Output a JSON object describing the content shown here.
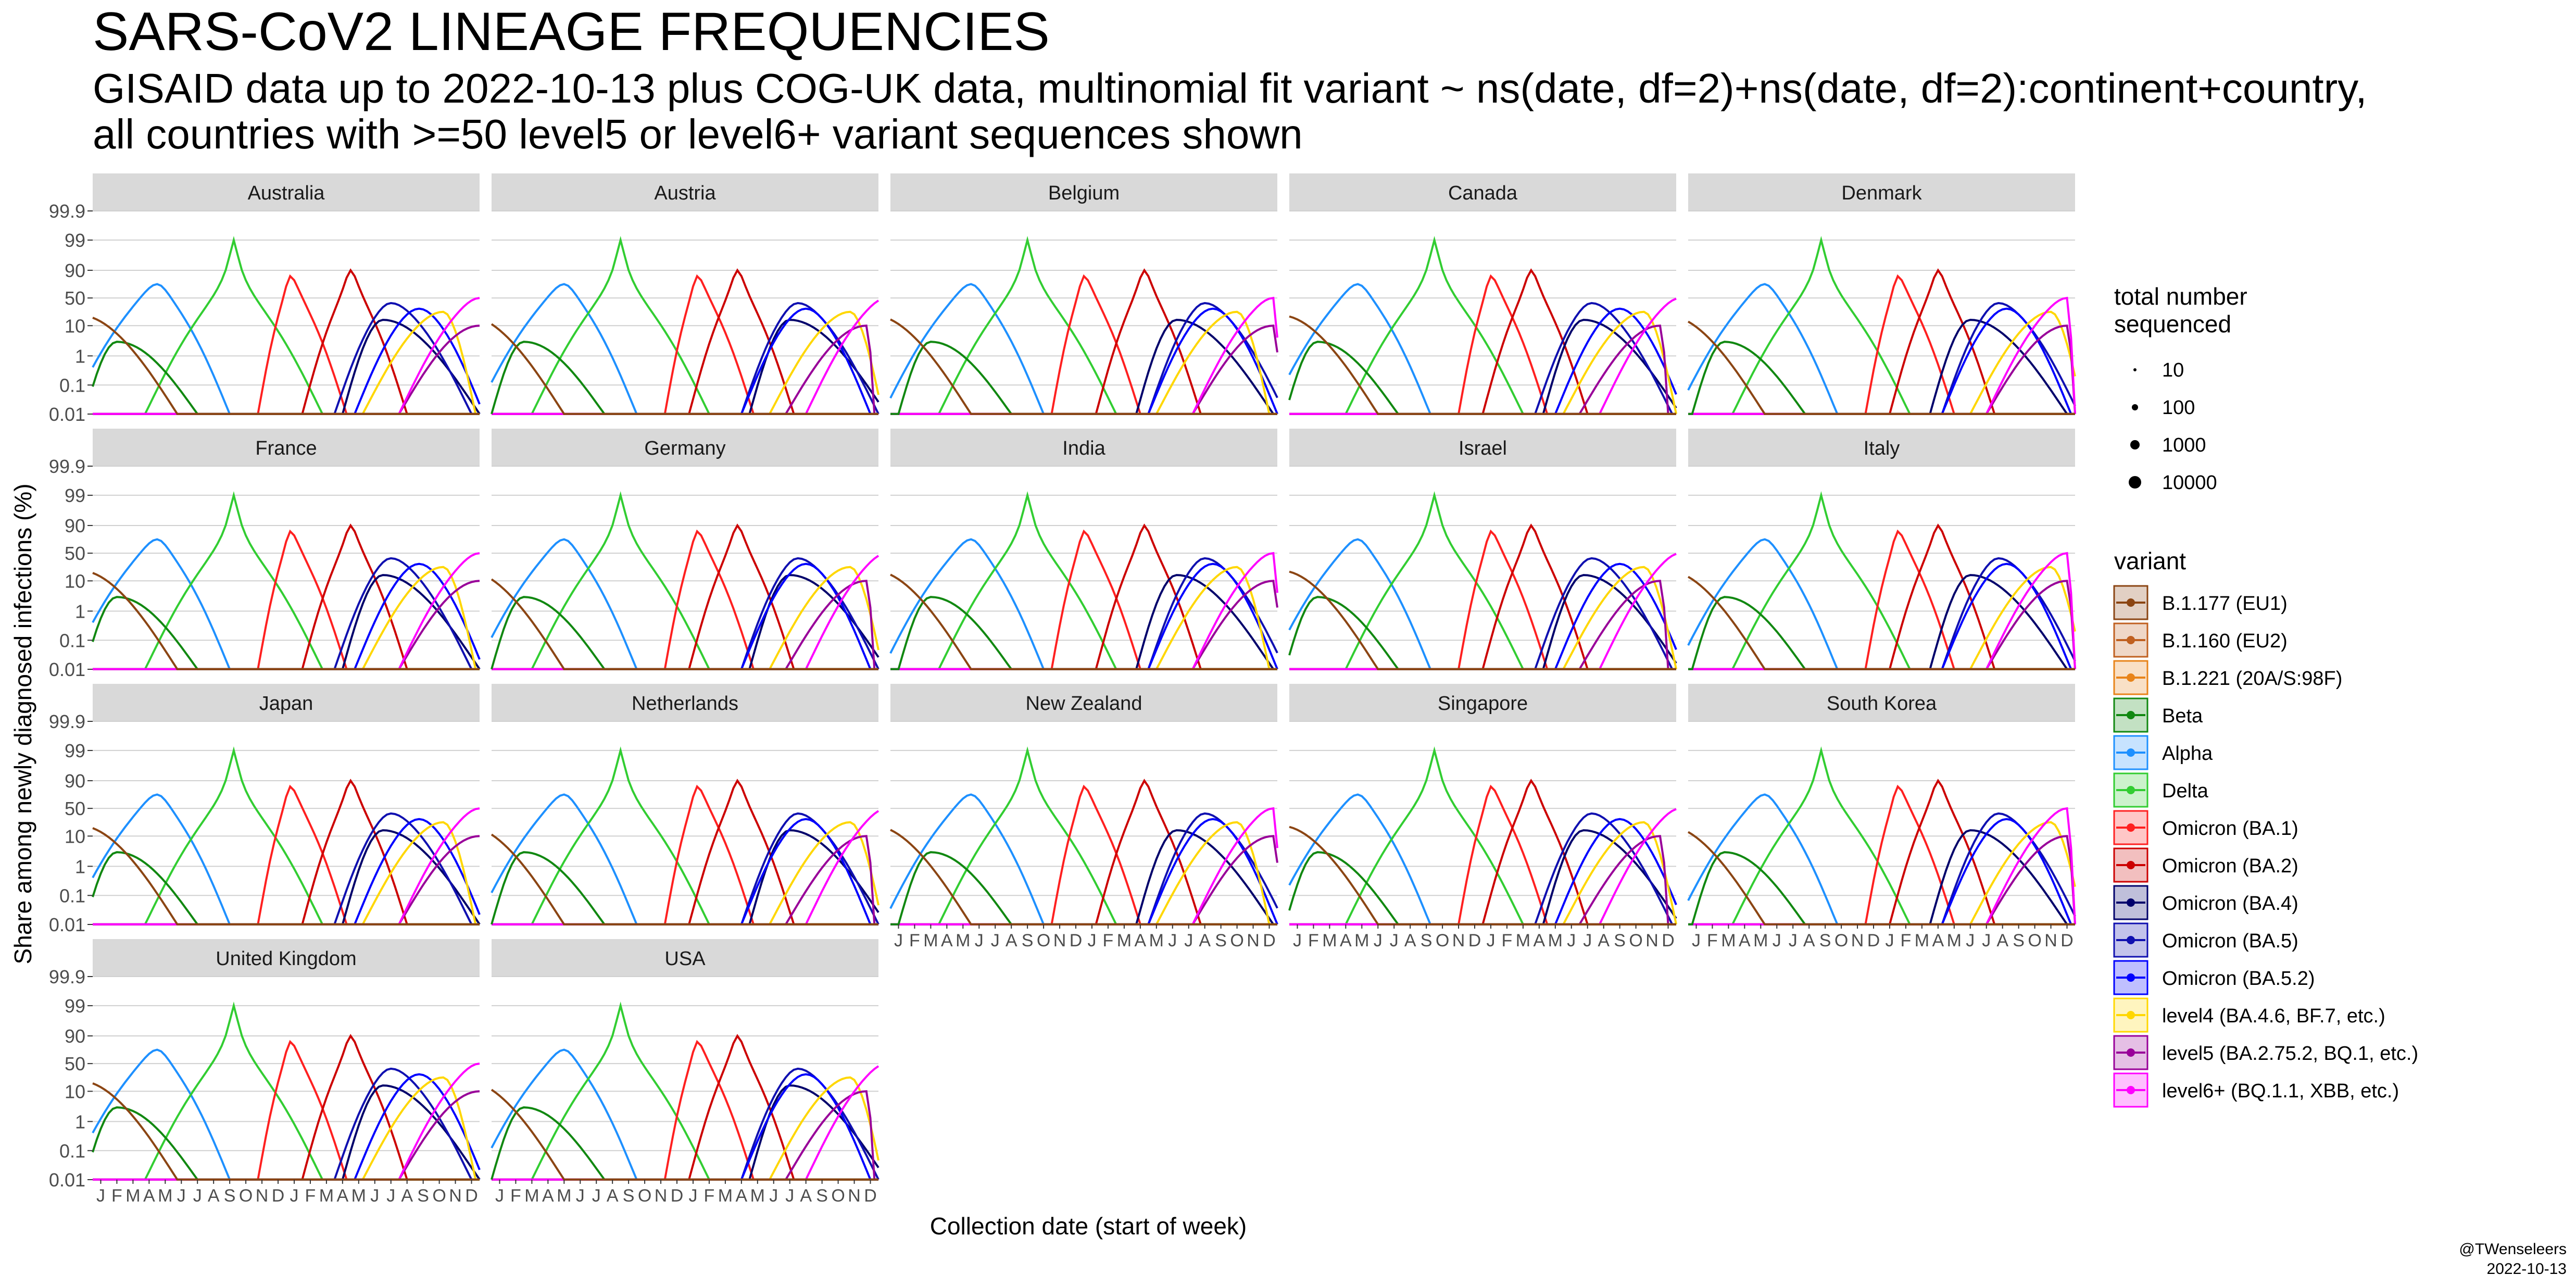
{
  "title": "SARS-CoV2 LINEAGE FREQUENCIES",
  "subtitle_lines": [
    "GISAID data up to 2022-10-13 plus COG-UK data, multinomial fit variant ~ ns(date, df=2)+ns(date, df=2):continent+country,",
    "all countries with >=50 level5 or level6+ variant sequences shown"
  ],
  "credit": {
    "author": "@TWenseleers",
    "date": "2022-10-13"
  },
  "chart_data": {
    "type": "line",
    "title": "SARS-CoV2 LINEAGE FREQUENCIES",
    "xlabel": "Collection date (start of week)",
    "ylabel": "Share among newly diagnosed infections (%)",
    "y_scale": "logit",
    "y_ticks": [
      "0.01",
      "0.1",
      "1",
      "10",
      "50",
      "90",
      "99",
      "99.9"
    ],
    "y_tick_values": [
      0.01,
      0.1,
      1,
      10,
      50,
      90,
      99,
      99.9
    ],
    "x_tick_labels": [
      "J",
      "F",
      "M",
      "A",
      "M",
      "J",
      "J",
      "A",
      "S",
      "O",
      "N",
      "D",
      "J",
      "F",
      "M",
      "A",
      "M",
      "J",
      "J",
      "A",
      "S",
      "O",
      "N",
      "D"
    ],
    "x_range": [
      "2021-01",
      "2022-12"
    ],
    "grid": true,
    "legend_placement": "right",
    "facets": [
      "Australia",
      "Austria",
      "Belgium",
      "Canada",
      "Denmark",
      "France",
      "Germany",
      "India",
      "Israel",
      "Italy",
      "Japan",
      "Netherlands",
      "New Zealand",
      "Singapore",
      "South Korea",
      "United Kingdom",
      "USA"
    ],
    "size_legend": {
      "title_lines": [
        "total number",
        "sequenced"
      ],
      "labels": [
        "10",
        "100",
        "1000",
        "10000"
      ],
      "values": [
        10,
        100,
        1000,
        10000
      ]
    },
    "variant_legend": {
      "title": "variant",
      "items": [
        {
          "name": "B.1.177 (EU1)",
          "color": "#8B4513"
        },
        {
          "name": "B.1.160 (EU2)",
          "color": "#C06020"
        },
        {
          "name": "B.1.221 (20A/S:98F)",
          "color": "#E8841A"
        },
        {
          "name": "Beta",
          "color": "#118811"
        },
        {
          "name": "Alpha",
          "color": "#1E90FF"
        },
        {
          "name": "Delta",
          "color": "#32CD32"
        },
        {
          "name": "Omicron (BA.1)",
          "color": "#FF2020"
        },
        {
          "name": "Omicron (BA.2)",
          "color": "#CC0000"
        },
        {
          "name": "Omicron (BA.4)",
          "color": "#00006B"
        },
        {
          "name": "Omicron (BA.5)",
          "color": "#1010B0"
        },
        {
          "name": "Omicron (BA.5.2)",
          "color": "#0000FF"
        },
        {
          "name": "level4 (BA.4.6, BF.7, etc.)",
          "color": "#FFD700"
        },
        {
          "name": "level5 (BA.2.75.2, BQ.1, etc.)",
          "color": "#990099"
        },
        {
          "name": "level6+ (BQ.1.1, XBB, etc.)",
          "color": "#FF00FF"
        }
      ]
    },
    "series": [
      {
        "name": "Alpha",
        "start_month": -1,
        "peak_month": 4.5,
        "end_month": 9,
        "peak_pct": 75
      },
      {
        "name": "Delta",
        "start_month": 3,
        "peak_month": 8.5,
        "end_month": 14,
        "peak_pct": 99
      },
      {
        "name": "Omicron (BA.1)",
        "start_month": 10.5,
        "peak_month": 12.5,
        "end_month": 16,
        "peak_pct": 85
      },
      {
        "name": "Omicron (BA.2)",
        "start_month": 12.5,
        "peak_month": 15.5,
        "end_month": 19,
        "peak_pct": 90
      },
      {
        "name": "Omicron (BA.4)",
        "start_month": 15.5,
        "peak_month": 18,
        "end_month": 24,
        "peak_pct": 15
      },
      {
        "name": "Omicron (BA.5)",
        "start_month": 15.5,
        "peak_month": 19,
        "end_month": 24,
        "peak_pct": 40
      },
      {
        "name": "Omicron (BA.5.2)",
        "start_month": 16,
        "peak_month": 20,
        "end_month": 24,
        "peak_pct": 30
      },
      {
        "name": "level4 (BA.4.6, BF.7, etc.)",
        "start_month": 17,
        "peak_month": 22,
        "end_month": 24,
        "peak_pct": 25
      },
      {
        "name": "level5 (BA.2.75.2, BQ.1, etc.)",
        "start_month": 18.5,
        "peak_month": 23.5,
        "end_month": 24,
        "peak_pct": 10
      },
      {
        "name": "level6+ (BQ.1.1, XBB, etc.)",
        "start_month": 19,
        "peak_month": 24,
        "end_month": 24,
        "peak_pct": 50
      },
      {
        "name": "Beta",
        "start_month": 0,
        "peak_month": 2,
        "end_month": 7,
        "peak_pct": 3
      },
      {
        "name": "B.1.177 (EU1)",
        "start_month": -1,
        "peak_month": -1,
        "end_month": 5,
        "peak_pct": 20
      }
    ]
  }
}
